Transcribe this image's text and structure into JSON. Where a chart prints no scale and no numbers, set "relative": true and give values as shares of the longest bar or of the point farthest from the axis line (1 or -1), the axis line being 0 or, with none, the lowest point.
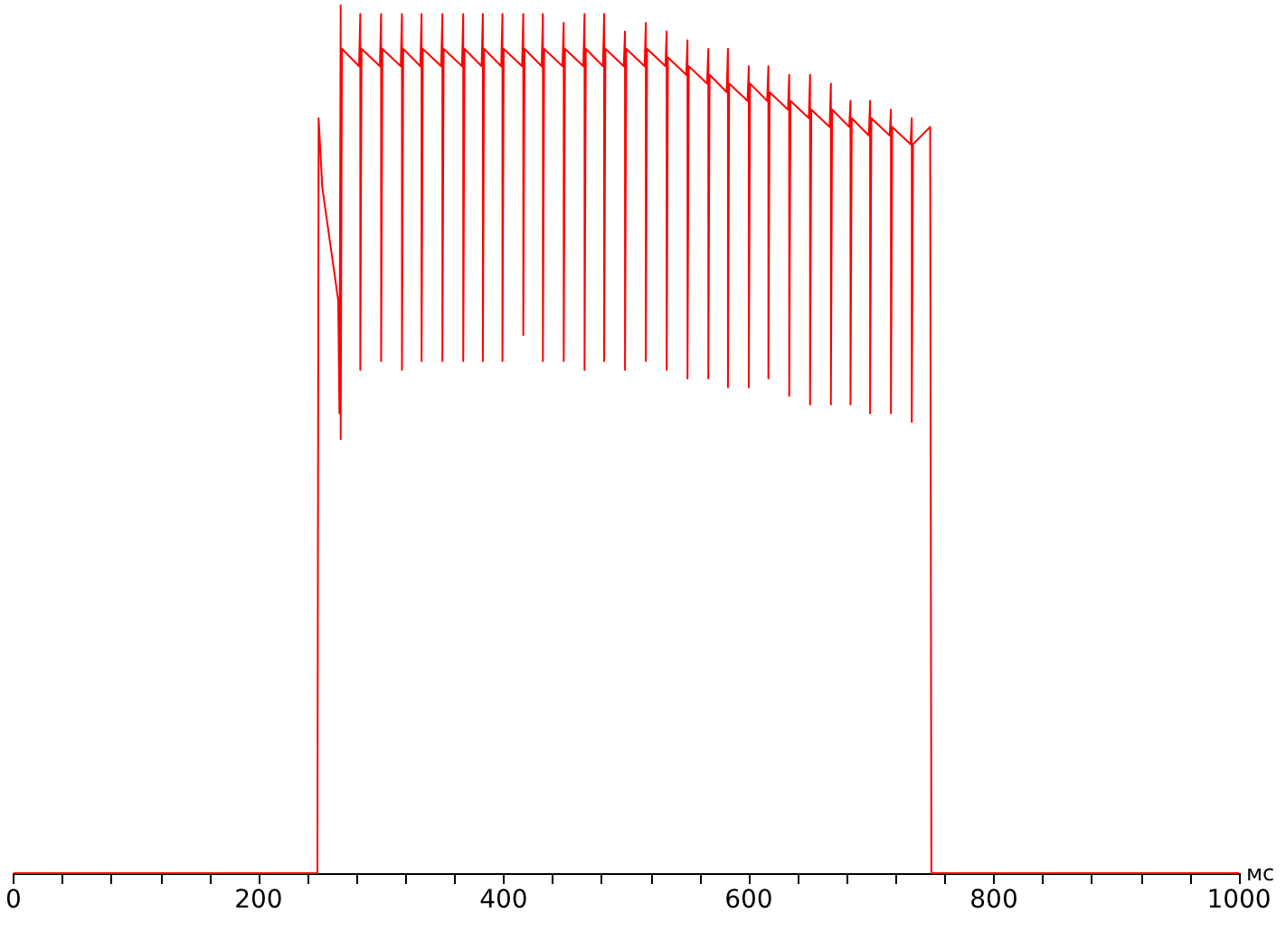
{
  "chart_data": {
    "type": "line",
    "relative": true,
    "xlabel": "мс",
    "xlim": [
      0,
      1000
    ],
    "xticks": [
      0,
      {
        "value": 40,
        "label": null
      },
      {
        "value": 80,
        "label": null
      },
      {
        "value": 120,
        "label": null
      },
      {
        "value": 160,
        "label": null
      },
      200,
      {
        "value": 240,
        "label": null
      },
      {
        "value": 280,
        "label": null
      },
      {
        "value": 320,
        "label": null
      },
      {
        "value": 360,
        "label": null
      },
      400,
      {
        "value": 440,
        "label": null
      },
      {
        "value": 480,
        "label": null
      },
      {
        "value": 520,
        "label": null
      },
      {
        "value": 560,
        "label": null
      },
      600,
      {
        "value": 640,
        "label": null
      },
      {
        "value": 680,
        "label": null
      },
      {
        "value": 720,
        "label": null
      },
      {
        "value": 760,
        "label": null
      },
      800,
      {
        "value": 840,
        "label": null
      },
      {
        "value": 880,
        "label": null
      },
      {
        "value": 920,
        "label": null
      },
      {
        "value": 960,
        "label": null
      },
      1000
    ],
    "grid": false,
    "marker": "none",
    "line_style": "solid",
    "series": [
      {
        "color": "#ff0000",
        "x": [
          0,
          248,
          249,
          252,
          258,
          262,
          265,
          266,
          267,
          267,
          268,
          282,
          283,
          283,
          284,
          299,
          300,
          300,
          301,
          316,
          317,
          317,
          318,
          332,
          333,
          333,
          334,
          349,
          350,
          350,
          351,
          366,
          367,
          367,
          368,
          382,
          383,
          383,
          384,
          398,
          399,
          399,
          400,
          415,
          416,
          416,
          417,
          431,
          432,
          432,
          433,
          448,
          449,
          449,
          450,
          465,
          466,
          466,
          467,
          481,
          482,
          482,
          483,
          498,
          499,
          499,
          500,
          515,
          516,
          516,
          517,
          532,
          533,
          533,
          534,
          549,
          550,
          550,
          551,
          566,
          567,
          567,
          568,
          582,
          583,
          583,
          584,
          599,
          600,
          600,
          601,
          615,
          616,
          616,
          617,
          632,
          633,
          633,
          634,
          649,
          650,
          650,
          651,
          666,
          667,
          667,
          668,
          682,
          683,
          683,
          684,
          698,
          699,
          699,
          700,
          715,
          716,
          716,
          717,
          732,
          733,
          733,
          734,
          748,
          749,
          749,
          1000
        ],
        "values": [
          0,
          0,
          0.87,
          0.79,
          0.73,
          0.69,
          0.66,
          0.53,
          1,
          0.5,
          0.95,
          0.93,
          0.99,
          0.58,
          0.95,
          0.93,
          0.99,
          0.59,
          0.95,
          0.93,
          0.99,
          0.58,
          0.95,
          0.93,
          0.99,
          0.59,
          0.95,
          0.93,
          0.99,
          0.59,
          0.95,
          0.93,
          0.99,
          0.59,
          0.95,
          0.93,
          0.99,
          0.59,
          0.95,
          0.93,
          0.99,
          0.59,
          0.95,
          0.93,
          0.99,
          0.62,
          0.95,
          0.93,
          0.99,
          0.59,
          0.95,
          0.93,
          0.98,
          0.59,
          0.95,
          0.93,
          0.99,
          0.58,
          0.95,
          0.93,
          0.99,
          0.59,
          0.95,
          0.93,
          0.97,
          0.58,
          0.95,
          0.93,
          0.98,
          0.59,
          0.95,
          0.93,
          0.97,
          0.58,
          0.94,
          0.92,
          0.96,
          0.57,
          0.93,
          0.91,
          0.95,
          0.57,
          0.92,
          0.9,
          0.95,
          0.56,
          0.91,
          0.89,
          0.93,
          0.56,
          0.91,
          0.89,
          0.93,
          0.57,
          0.9,
          0.88,
          0.92,
          0.55,
          0.89,
          0.87,
          0.92,
          0.54,
          0.88,
          0.86,
          0.91,
          0.54,
          0.88,
          0.86,
          0.89,
          0.54,
          0.87,
          0.85,
          0.89,
          0.53,
          0.87,
          0.85,
          0.88,
          0.53,
          0.86,
          0.84,
          0.87,
          0.52,
          0.84,
          0.86,
          0.86,
          0,
          0
        ]
      }
    ]
  }
}
